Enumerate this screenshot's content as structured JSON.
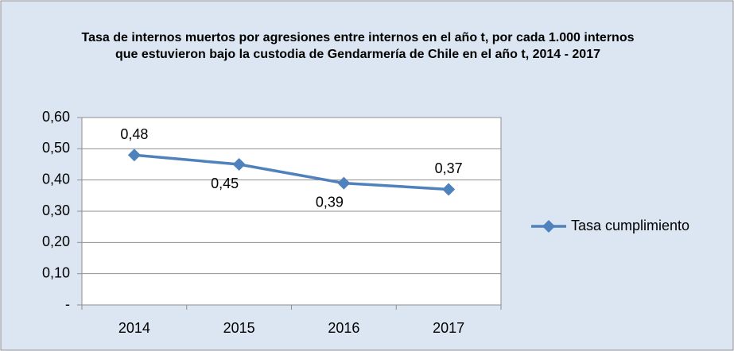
{
  "chart_data": {
    "type": "line",
    "title": "Tasa de internos muertos por agresiones entre internos en el año t, por cada 1.000 internos que estuvieron bajo la custodia de Gendarmería de Chile en el año t, 2014 - 2017",
    "categories": [
      "2014",
      "2015",
      "2016",
      "2017"
    ],
    "series": [
      {
        "name": "Tasa cumplimiento",
        "color": "#4f81bd",
        "values": [
          0.48,
          0.45,
          0.39,
          0.37
        ],
        "value_labels": [
          "0,48",
          "0,45",
          "0,39",
          "0,37"
        ]
      }
    ],
    "ylim": [
      0,
      0.6
    ],
    "yticks": [
      {
        "value": 0,
        "label": "-"
      },
      {
        "value": 0.1,
        "label": "0,10"
      },
      {
        "value": 0.2,
        "label": "0,20"
      },
      {
        "value": 0.3,
        "label": "0,30"
      },
      {
        "value": 0.4,
        "label": "0,40"
      },
      {
        "value": 0.5,
        "label": "0,50"
      },
      {
        "value": 0.6,
        "label": "0,60"
      }
    ],
    "grid": true,
    "legend": "right"
  }
}
